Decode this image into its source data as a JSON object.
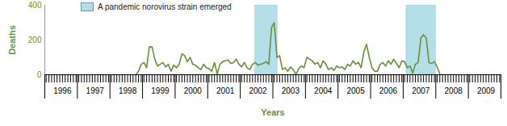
{
  "chart_data": {
    "type": "line",
    "x_label": "Years",
    "y_label": "Deaths",
    "color": "#6a8f3c",
    "ylim": [
      0,
      400
    ],
    "yticks": [
      0,
      200,
      400
    ],
    "categories": [
      null,
      null,
      null,
      null,
      null,
      null,
      "1996",
      null,
      null,
      null,
      null,
      null,
      null,
      null,
      null,
      null,
      null,
      null,
      "1997",
      null,
      null,
      null,
      null,
      null,
      null,
      null,
      null,
      null,
      null,
      null,
      "1998",
      null,
      null,
      null,
      null,
      null,
      null,
      null,
      null,
      null,
      null,
      null,
      "1999",
      null,
      null,
      null,
      null,
      null,
      null,
      null,
      null,
      null,
      null,
      null,
      "2000",
      null,
      null,
      null,
      null,
      null,
      null,
      null,
      null,
      null,
      null,
      null,
      "2001",
      null,
      null,
      null,
      null,
      null,
      null,
      null,
      null,
      null,
      null,
      null,
      "2002",
      null,
      null,
      null,
      null,
      null,
      null,
      null,
      null,
      null,
      null,
      null,
      "2003",
      null,
      null,
      null,
      null,
      null,
      null,
      null,
      null,
      null,
      null,
      null,
      "2004",
      null,
      null,
      null,
      null,
      null,
      null,
      null,
      null,
      null,
      null,
      null,
      "2005",
      null,
      null,
      null,
      null,
      null,
      null,
      null,
      null,
      null,
      null,
      null,
      "2006",
      null,
      null,
      null,
      null,
      null,
      null,
      null,
      null,
      null,
      null,
      null,
      "2007",
      null,
      null,
      null,
      null,
      null,
      null,
      null,
      null,
      null,
      null,
      null,
      "2008",
      null,
      null,
      null,
      null,
      null,
      null,
      null,
      null,
      null,
      null,
      null,
      "2009",
      null,
      null,
      null,
      null,
      null
    ],
    "values": [
      null,
      null,
      null,
      null,
      null,
      null,
      null,
      null,
      null,
      null,
      null,
      null,
      null,
      null,
      null,
      null,
      null,
      null,
      null,
      null,
      null,
      null,
      null,
      null,
      null,
      null,
      null,
      null,
      null,
      null,
      null,
      null,
      null,
      0,
      20,
      60,
      70,
      40,
      160,
      160,
      90,
      50,
      60,
      70,
      45,
      60,
      20,
      55,
      40,
      60,
      120,
      110,
      75,
      100,
      60,
      55,
      40,
      30,
      60,
      40,
      35,
      20,
      70,
      5,
      60,
      75,
      80,
      85,
      65,
      70,
      90,
      60,
      45,
      70,
      40,
      30,
      60,
      70,
      55,
      60,
      65,
      75,
      60,
      270,
      300,
      100,
      110,
      30,
      40,
      20,
      45,
      30,
      0,
      35,
      50,
      40,
      100,
      90,
      80,
      60,
      70,
      40,
      80,
      60,
      30,
      40,
      25,
      50,
      40,
      45,
      30,
      60,
      50,
      80,
      60,
      70,
      40,
      130,
      175,
      100,
      40,
      20,
      20,
      60,
      70,
      50,
      80,
      60,
      90,
      65,
      40,
      80,
      75,
      40,
      50,
      10,
      60,
      70,
      210,
      230,
      210,
      70,
      65,
      75,
      45,
      5,
      null,
      null,
      null,
      null,
      null,
      null,
      null,
      null,
      null,
      null,
      null,
      null,
      null,
      null,
      null,
      null,
      null,
      null,
      null,
      null,
      null,
      null
    ],
    "annotations": [
      {
        "text": "A pandemic norovirus strain emerged",
        "color": "#b5dfe8",
        "spans": [
          [
            2002.46,
            2003.14
          ],
          [
            2007.1,
            2008.0
          ]
        ]
      }
    ]
  }
}
